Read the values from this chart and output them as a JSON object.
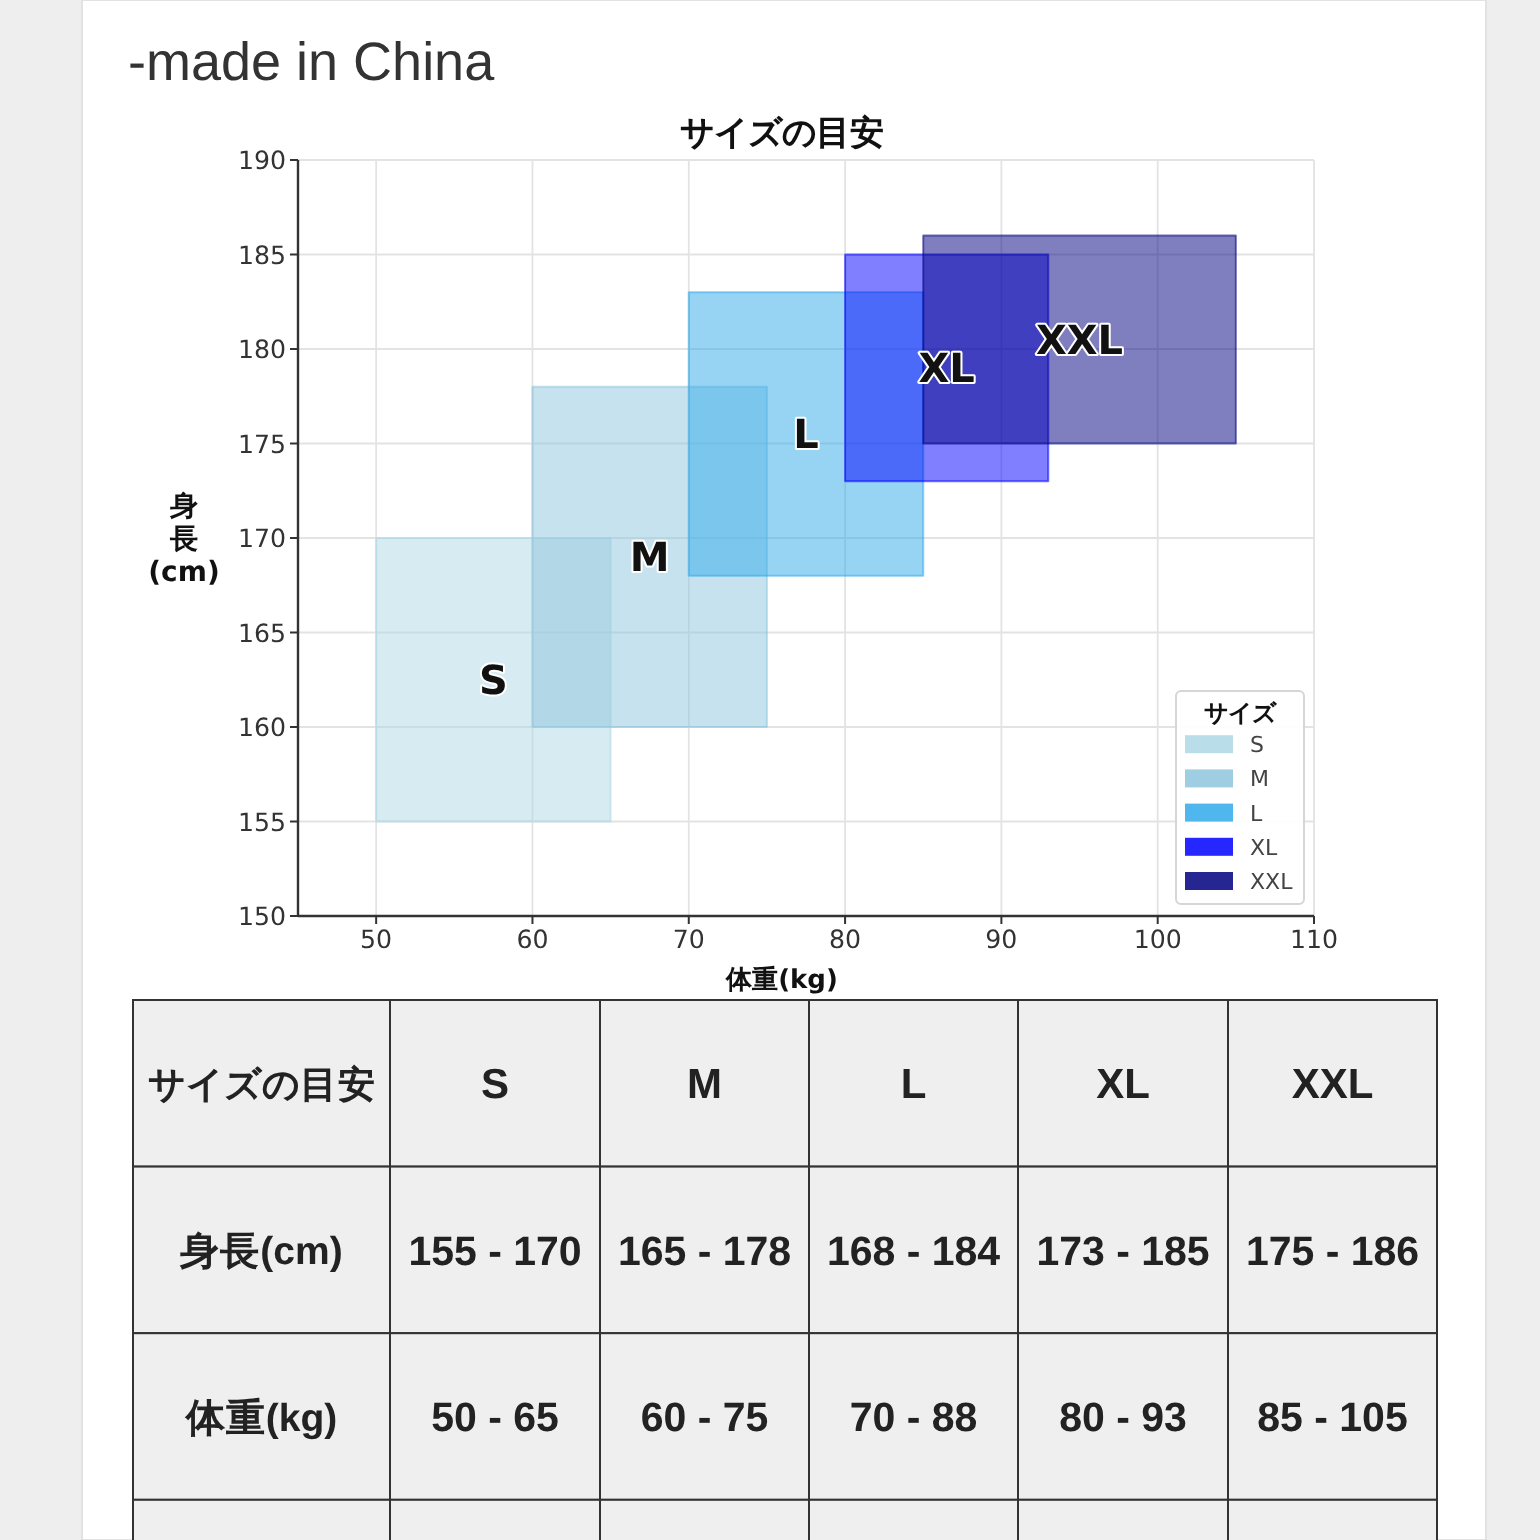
{
  "chart_data": [
    {
      "type": "line",
      "title": "サイズの目安",
      "xlabel": "体重(kg)",
      "ylabel": "身長(cm)",
      "legend_title": "サイズ",
      "legend": "bottom right",
      "grid": true,
      "xlim": [
        45,
        110
      ],
      "ylim": [
        150,
        190
      ],
      "xticks": [
        50,
        60,
        70,
        80,
        90,
        100,
        110
      ],
      "yticks": [
        150,
        155,
        160,
        165,
        170,
        175,
        180,
        185,
        190
      ],
      "annotations": [
        "-made in China"
      ],
      "series": [
        {
          "name": "S",
          "color": "#add8e6",
          "x": [
            50,
            65
          ],
          "values": [
            null,
            null
          ],
          "lower": [
            155,
            155
          ],
          "upper": [
            170,
            170
          ]
        },
        {
          "name": "M",
          "color": "#8ec5de",
          "x": [
            60,
            75
          ],
          "values": [
            null,
            null
          ],
          "lower": [
            160,
            160
          ],
          "upper": [
            178,
            178
          ]
        },
        {
          "name": "L",
          "color": "#30aaea",
          "x": [
            70,
            85
          ],
          "values": [
            null,
            null
          ],
          "lower": [
            168,
            168
          ],
          "upper": [
            183,
            183
          ]
        },
        {
          "name": "XL",
          "color": "#0000ff",
          "x": [
            80,
            93
          ],
          "values": [
            null,
            null
          ],
          "lower": [
            173,
            173
          ],
          "upper": [
            185,
            185
          ]
        },
        {
          "name": "XXL",
          "color": "#000080",
          "x": [
            85,
            105
          ],
          "values": [
            null,
            null
          ],
          "lower": [
            175,
            175
          ],
          "upper": [
            186,
            186
          ]
        }
      ]
    },
    {
      "type": "other",
      "title": "サイズの目安",
      "categories": [
        "S",
        "M",
        "L",
        "XL",
        "XXL"
      ],
      "y_categories": [
        "身長(cm)",
        "体重(kg)"
      ],
      "cell_labels": [
        [
          "155 - 170",
          "165 - 178",
          "168 - 184",
          "173 - 185",
          "175 - 186"
        ],
        [
          "50 - 65",
          "60 - 75",
          "70 - 88",
          "80 - 93",
          "85 - 105"
        ]
      ]
    }
  ]
}
